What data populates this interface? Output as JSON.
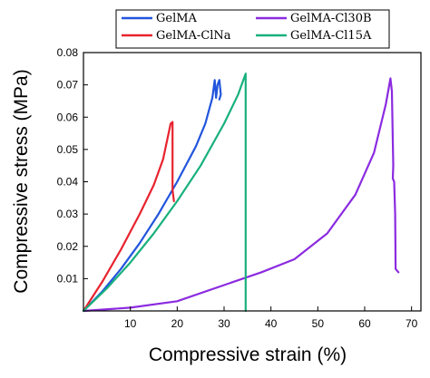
{
  "chart_data": {
    "type": "line",
    "xlabel": "Compressive strain (%)",
    "ylabel": "Compressive stress (MPa)",
    "xlim": [
      0,
      72
    ],
    "ylim": [
      0,
      0.08
    ],
    "x_ticks": [
      "10",
      "20",
      "30",
      "40",
      "50",
      "60",
      "70"
    ],
    "y_ticks": [
      "0.01",
      "0.02",
      "0.03",
      "0.04",
      "0.05",
      "0.06",
      "0.07",
      "0.08"
    ],
    "legend": {
      "placement": "top",
      "columns": 2
    },
    "series": [
      {
        "name": "GelMA",
        "color": "#2255dd",
        "points": [
          [
            0,
            0
          ],
          [
            4,
            0.006
          ],
          [
            8,
            0.013
          ],
          [
            12,
            0.021
          ],
          [
            16,
            0.03
          ],
          [
            20,
            0.04
          ],
          [
            24,
            0.051
          ],
          [
            26,
            0.058
          ],
          [
            27.5,
            0.066
          ],
          [
            28.0,
            0.0715
          ],
          [
            28.3,
            0.066
          ],
          [
            28.6,
            0.07
          ],
          [
            29.0,
            0.0715
          ],
          [
            29.3,
            0.067
          ],
          [
            29.0,
            0.0655
          ]
        ]
      },
      {
        "name": "GelMA-ClNa",
        "color": "#e8232f",
        "points": [
          [
            0,
            0
          ],
          [
            4,
            0.009
          ],
          [
            8,
            0.019
          ],
          [
            12,
            0.03
          ],
          [
            15,
            0.039
          ],
          [
            17,
            0.047
          ],
          [
            18.6,
            0.058
          ],
          [
            19.0,
            0.0585
          ],
          [
            19.0,
            0.052
          ],
          [
            19.0,
            0.0375
          ],
          [
            19.3,
            0.034
          ]
        ]
      },
      {
        "name": "GelMA-Cl30B",
        "color": "#8b2be0",
        "points": [
          [
            0,
            0
          ],
          [
            10,
            0.001
          ],
          [
            20,
            0.003
          ],
          [
            30,
            0.008
          ],
          [
            38,
            0.012
          ],
          [
            45,
            0.016
          ],
          [
            52,
            0.024
          ],
          [
            58,
            0.036
          ],
          [
            62,
            0.049
          ],
          [
            64.5,
            0.064
          ],
          [
            65.5,
            0.072
          ],
          [
            65.8,
            0.068
          ],
          [
            66.1,
            0.045
          ],
          [
            66.0,
            0.041
          ],
          [
            66.3,
            0.04
          ],
          [
            66.5,
            0.03
          ],
          [
            66.6,
            0.013
          ],
          [
            67.2,
            0.012
          ]
        ]
      },
      {
        "name": "GelMA-Cl15A",
        "color": "#18b07c",
        "points": [
          [
            0,
            0
          ],
          [
            5,
            0.007
          ],
          [
            10,
            0.015
          ],
          [
            15,
            0.024
          ],
          [
            20,
            0.034
          ],
          [
            25,
            0.045
          ],
          [
            30,
            0.058
          ],
          [
            33,
            0.067
          ],
          [
            34.6,
            0.0735
          ],
          [
            34.6,
            0.0
          ]
        ]
      }
    ]
  }
}
